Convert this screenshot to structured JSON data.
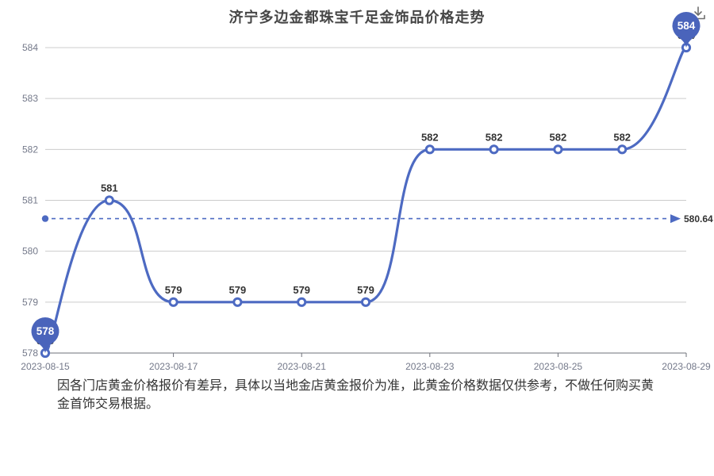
{
  "header": {
    "title": "济宁多边金都珠宝千足金饰品价格走势"
  },
  "toolbox": {
    "save_icon": "download-icon"
  },
  "chart_data": {
    "type": "line",
    "title": "济宁多边金都珠宝千足金饰品价格走势",
    "smooth": true,
    "x_tick_labels": [
      "2023-08-15",
      "2023-08-17",
      "2023-08-21",
      "2023-08-23",
      "2023-08-25",
      "2023-08-29"
    ],
    "x_tick_indexes": [
      0,
      2,
      4,
      6,
      8,
      10
    ],
    "values": [
      578,
      581,
      579,
      579,
      579,
      579,
      582,
      582,
      582,
      582,
      584
    ],
    "point_labels": [
      "578",
      "581",
      "579",
      "579",
      "579",
      "579",
      "582",
      "582",
      "582",
      "582",
      "584"
    ],
    "y_ticks": [
      578,
      579,
      580,
      581,
      582,
      583,
      584
    ],
    "ylim": [
      578,
      584
    ],
    "grid": true,
    "legend": "none",
    "average_line": {
      "value": 580.64,
      "label": "580.64",
      "style": "dashed-arrow"
    },
    "min_marker": {
      "index": 0,
      "label": "578"
    },
    "max_marker": {
      "index": 10,
      "label": "584"
    },
    "colors": {
      "line": "#4d6ac2",
      "pin": "#4a64bb",
      "point_fill": "#ffffff",
      "grid_line": "#cccccc",
      "axis_line": "#6E7079",
      "axis_label": "#74798a",
      "point_label": "#333333",
      "title": "#464646",
      "icon": "#707070"
    }
  },
  "footer": {
    "text": "因各门店黄金价格报价有差异，具体以当地金店黄金报价为准，此黄金价格数据仅供参考，不做任何购买黄金首饰交易根据。"
  }
}
